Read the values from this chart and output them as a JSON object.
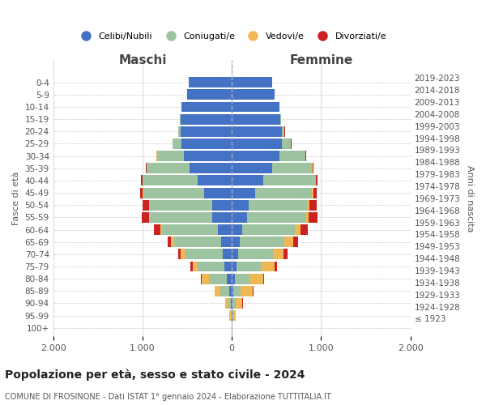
{
  "age_groups": [
    "100+",
    "95-99",
    "90-94",
    "85-89",
    "80-84",
    "75-79",
    "70-74",
    "65-69",
    "60-64",
    "55-59",
    "50-54",
    "45-49",
    "40-44",
    "35-39",
    "30-34",
    "25-29",
    "20-24",
    "15-19",
    "10-14",
    "5-9",
    "0-4"
  ],
  "birth_years": [
    "≤ 1923",
    "1924-1928",
    "1929-1933",
    "1934-1938",
    "1939-1943",
    "1944-1948",
    "1949-1953",
    "1954-1958",
    "1959-1963",
    "1964-1968",
    "1969-1973",
    "1974-1978",
    "1979-1983",
    "1984-1988",
    "1989-1993",
    "1994-1998",
    "1999-2003",
    "2004-2008",
    "2009-2013",
    "2014-2018",
    "2019-2023"
  ],
  "male_celibe": [
    2,
    5,
    10,
    30,
    60,
    80,
    100,
    120,
    160,
    220,
    220,
    310,
    380,
    470,
    540,
    560,
    570,
    570,
    560,
    500,
    480
  ],
  "male_coniugato": [
    2,
    10,
    30,
    100,
    200,
    300,
    420,
    530,
    620,
    700,
    700,
    680,
    620,
    480,
    300,
    100,
    30,
    10,
    5,
    3,
    2
  ],
  "male_vedovo": [
    2,
    10,
    30,
    60,
    80,
    60,
    50,
    35,
    20,
    10,
    5,
    5,
    3,
    2,
    2,
    2,
    2,
    1,
    0,
    0,
    0
  ],
  "male_divorziato": [
    0,
    2,
    2,
    5,
    10,
    20,
    30,
    35,
    70,
    80,
    70,
    30,
    15,
    10,
    5,
    5,
    2,
    1,
    0,
    0,
    0
  ],
  "female_celibe": [
    2,
    5,
    10,
    20,
    30,
    50,
    70,
    90,
    120,
    170,
    190,
    260,
    350,
    450,
    530,
    560,
    560,
    540,
    530,
    480,
    450
  ],
  "female_coniugato": [
    2,
    10,
    30,
    80,
    170,
    280,
    390,
    500,
    590,
    660,
    660,
    640,
    590,
    450,
    290,
    100,
    30,
    10,
    5,
    3,
    2
  ],
  "female_vedovo": [
    5,
    30,
    80,
    130,
    150,
    150,
    120,
    100,
    60,
    30,
    15,
    10,
    5,
    3,
    3,
    3,
    2,
    1,
    0,
    0,
    0
  ],
  "female_divorziato": [
    0,
    2,
    5,
    10,
    15,
    30,
    40,
    50,
    80,
    100,
    90,
    40,
    15,
    10,
    10,
    5,
    2,
    1,
    0,
    0,
    0
  ],
  "colors": {
    "celibe": "#4472c4",
    "coniugato": "#9dc3a0",
    "vedovo": "#f0b855",
    "divorziato": "#cc2222"
  },
  "xlim": 2000,
  "title": "Popolazione per età, sesso e stato civile - 2024",
  "subtitle": "COMUNE DI FROSINONE - Dati ISTAT 1° gennaio 2024 - Elaborazione TUTTITALIA.IT",
  "ylabel_left": "Fasce di età",
  "ylabel_right": "Anni di nascita",
  "xlabel_left": "Maschi",
  "xlabel_right": "Femmine",
  "legend_labels": [
    "Celibi/Nubili",
    "Coniugati/e",
    "Vedovi/e",
    "Divorziati/e"
  ],
  "background_color": "#ffffff",
  "grid_color": "#cccccc"
}
